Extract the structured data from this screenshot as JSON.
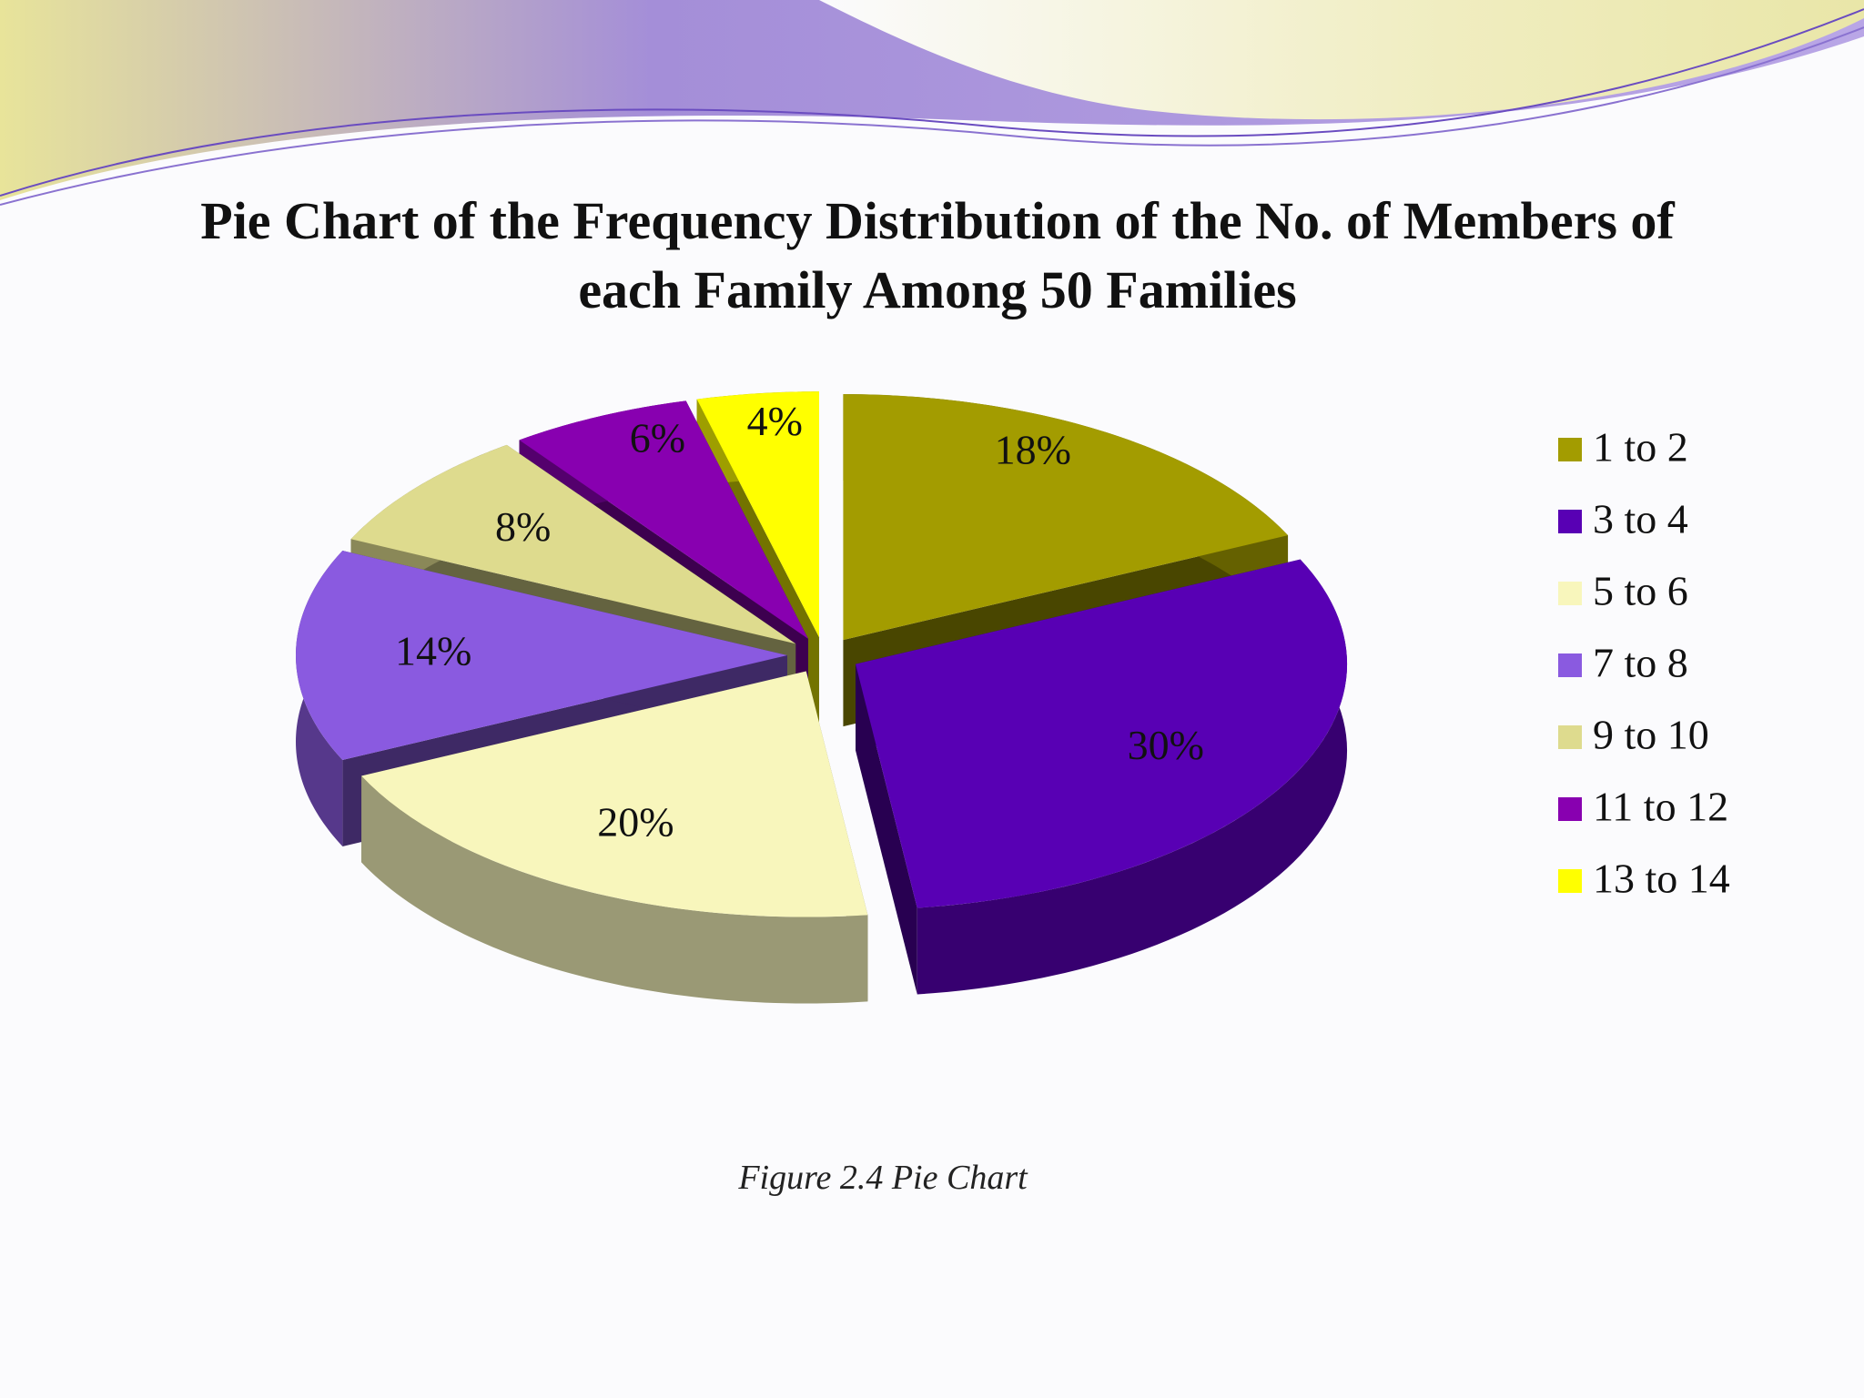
{
  "chart_data": {
    "type": "pie",
    "title": "Pie Chart of the Frequency Distribution of the No. of Members of each Family Among 50 Families",
    "categories": [
      "1 to 2",
      "3 to 4",
      "5 to 6",
      "7 to 8",
      "9 to 10",
      "11 to 12",
      "13 to 14"
    ],
    "values": [
      18,
      30,
      20,
      14,
      8,
      6,
      4
    ],
    "value_labels": [
      "18%",
      "30%",
      "20%",
      "14%",
      "8%",
      "6%",
      "4%"
    ],
    "colors": [
      "#a39c00",
      "#5800b4",
      "#f8f6bc",
      "#8a5ae0",
      "#dedb8e",
      "#8800b0",
      "#ffff00"
    ],
    "legend": "right",
    "caption": "Figure 2.4 Pie Chart"
  }
}
